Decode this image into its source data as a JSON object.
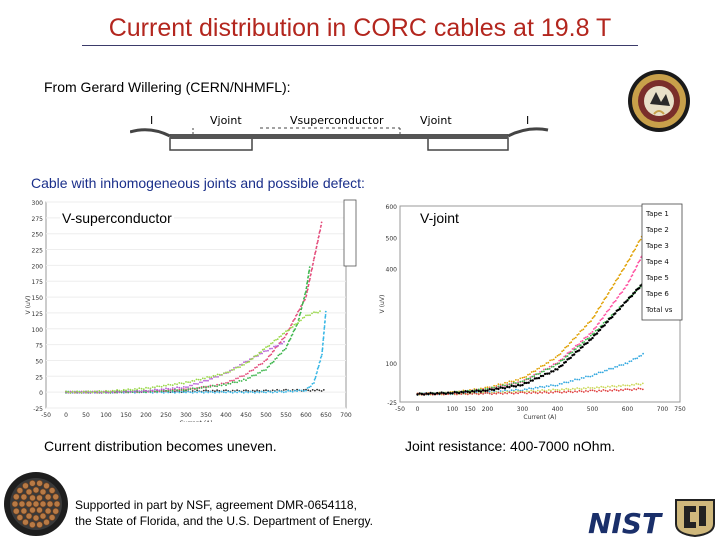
{
  "slide": {
    "title": "Current distribution in CORC cables at 19.8 T",
    "credit": "From Gerard Willering (CERN/NHMFL):",
    "cable_heading": "Cable with inhomogeneous joints and possible defect:",
    "caption_left": "Current distribution becomes uneven.",
    "caption_right": "Joint resistance: 400-7000 nOhm.",
    "support_line1": "Supported in part by NSF, agreement DMR-0654118,",
    "support_line2": "the State of Florida, and the U.S. Department of Energy."
  },
  "schematic": {
    "labels": [
      "I",
      "Vjoint",
      "Vsuperconductor",
      "Vjoint",
      "I"
    ]
  },
  "logos": {
    "nhmfl": "nhmfl-seal",
    "nist": "NIST",
    "cu": "cu-logo"
  },
  "colors": {
    "title": "#b3261e",
    "heading": "#1a2f8a"
  },
  "chart_data": [
    {
      "type": "scatter",
      "inset_label": "V-superconductor",
      "xlabel": "Current (A)",
      "ylabel": "V (uV)",
      "xlim": [
        -50,
        700
      ],
      "ylim": [
        -25,
        300
      ],
      "xticks": [
        "-50",
        "0",
        "50",
        "100",
        "150",
        "200",
        "250",
        "300",
        "350",
        "400",
        "450",
        "500",
        "550",
        "600",
        "650",
        "700"
      ],
      "yticks": [
        "-25",
        "0",
        "25",
        "50",
        "75",
        "100",
        "125",
        "150",
        "175",
        "200",
        "225",
        "250",
        "275",
        "300"
      ],
      "series": [
        {
          "color": "#2b2b2b",
          "x": [
            0,
            50,
            100,
            150,
            200,
            250,
            300,
            350,
            400,
            450,
            500,
            550,
            600,
            650
          ],
          "y": [
            0,
            0,
            0,
            1,
            1,
            1,
            1,
            2,
            2,
            2,
            2,
            3,
            3,
            3
          ]
        },
        {
          "color": "#33b5e5",
          "x": [
            0,
            100,
            200,
            300,
            400,
            500,
            550,
            600,
            620,
            640,
            650
          ],
          "y": [
            0,
            0,
            0,
            0,
            0,
            0,
            1,
            3,
            15,
            60,
            130
          ]
        },
        {
          "color": "#e34a7a",
          "x": [
            0,
            100,
            200,
            300,
            350,
            400,
            450,
            500,
            550,
            600,
            620,
            640
          ],
          "y": [
            0,
            0,
            1,
            4,
            8,
            14,
            28,
            50,
            90,
            150,
            210,
            270
          ]
        },
        {
          "color": "#3ab54a",
          "x": [
            0,
            100,
            200,
            300,
            350,
            400,
            450,
            500,
            550,
            580,
            600,
            610
          ],
          "y": [
            0,
            0,
            1,
            4,
            8,
            12,
            20,
            36,
            70,
            110,
            160,
            200
          ]
        },
        {
          "color": "#b45ad6",
          "x": [
            0,
            100,
            200,
            300,
            350,
            400,
            450,
            500,
            550
          ],
          "y": [
            0,
            0,
            2,
            8,
            18,
            30,
            48,
            65,
            80
          ]
        },
        {
          "color": "#9ad84a",
          "x": [
            0,
            100,
            200,
            300,
            400,
            450,
            500,
            550,
            600,
            620,
            640
          ],
          "y": [
            0,
            1,
            6,
            15,
            30,
            45,
            70,
            95,
            120,
            125,
            128
          ]
        }
      ]
    },
    {
      "type": "line",
      "inset_label": "V-joint",
      "xlabel": "Current (A)",
      "ylabel": "V (uV)",
      "xlim": [
        -50,
        750
      ],
      "ylim": [
        -25,
        600
      ],
      "xticks": [
        "-50",
        "0",
        "100",
        "150",
        "200",
        "300",
        "400",
        "500",
        "600",
        "700",
        "750"
      ],
      "yticks": [
        "-25",
        "100",
        "400",
        "500",
        "600"
      ],
      "legend": [
        "Tape 1",
        "Tape 2",
        "Tape 3",
        "Tape 4",
        "Tape 5",
        "Tape 6",
        "Total vs"
      ],
      "legend_placement": "top-right",
      "series": [
        {
          "color": "#e0a000",
          "x": [
            0,
            100,
            200,
            300,
            400,
            500,
            600,
            650,
            680
          ],
          "y": [
            0,
            5,
            20,
            50,
            120,
            240,
            420,
            520,
            600
          ]
        },
        {
          "color": "#ff4fa0",
          "x": [
            0,
            100,
            200,
            300,
            400,
            500,
            600,
            650,
            680
          ],
          "y": [
            0,
            4,
            16,
            40,
            100,
            200,
            350,
            460,
            560
          ]
        },
        {
          "color": "#3ab54a",
          "x": [
            0,
            100,
            200,
            300,
            400,
            500,
            600,
            650
          ],
          "y": [
            0,
            4,
            16,
            40,
            95,
            190,
            300,
            360
          ]
        },
        {
          "color": "#33a8e0",
          "x": [
            0,
            100,
            200,
            300,
            400,
            500,
            600,
            650
          ],
          "y": [
            0,
            2,
            6,
            14,
            30,
            60,
            100,
            130
          ]
        },
        {
          "color": "#ccd95a",
          "x": [
            0,
            100,
            200,
            300,
            400,
            500,
            600,
            650
          ],
          "y": [
            0,
            1,
            4,
            8,
            14,
            20,
            28,
            34
          ]
        },
        {
          "color": "#e04040",
          "x": [
            0,
            100,
            200,
            300,
            400,
            500,
            600,
            650
          ],
          "y": [
            0,
            1,
            2,
            4,
            6,
            10,
            14,
            18
          ]
        },
        {
          "color": "#000000",
          "x": [
            0,
            100,
            200,
            300,
            400,
            500,
            600,
            650
          ],
          "y": [
            0,
            4,
            12,
            30,
            80,
            180,
            300,
            360
          ]
        }
      ]
    }
  ]
}
